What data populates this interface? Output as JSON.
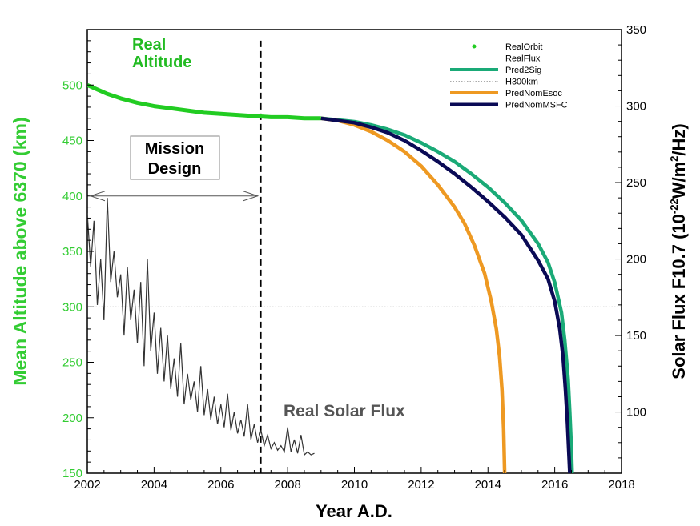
{
  "chart_data": {
    "type": "line",
    "xlabel": "Year A.D.",
    "ylabel_left": "Mean Altitude above 6370 (km)",
    "ylabel_right_parts": [
      "Solar Flux F10.7 (10",
      "-22",
      "W/m",
      "2",
      "/Hz)"
    ],
    "xlim": [
      2002,
      2018
    ],
    "ylim_left": [
      150,
      550
    ],
    "ylim_right": [
      60,
      350
    ],
    "x_ticks": [
      2002,
      2004,
      2006,
      2008,
      2010,
      2012,
      2014,
      2016,
      2018
    ],
    "y_ticks_left": [
      150,
      200,
      250,
      300,
      350,
      400,
      450,
      500
    ],
    "y_ticks_right": [
      100,
      150,
      200,
      250,
      300,
      350
    ],
    "annotations": {
      "real_altitude": [
        "Real",
        "Altitude"
      ],
      "mission_design": [
        "Mission",
        "Design"
      ],
      "real_solar_flux": "Real Solar Flux"
    },
    "mission_design_end_year": 2007.2,
    "legend": [
      {
        "label": "RealOrbit",
        "color": "#22cc22",
        "style": "dot"
      },
      {
        "label": "RealFlux",
        "color": "#000000",
        "style": "thin"
      },
      {
        "label": "Pred2Sig",
        "color": "#1aaa77",
        "style": "thick"
      },
      {
        "label": "H300km",
        "color": "#aaaaaa",
        "style": "dotted"
      },
      {
        "label": "PredNomEsoc",
        "color": "#ee9922",
        "style": "thick"
      },
      {
        "label": "PredNomMSFC",
        "color": "#0a0a55",
        "style": "thick"
      }
    ],
    "h300km": 300,
    "series": [
      {
        "name": "RealOrbit",
        "color": "#22cc22",
        "x": [
          2002.0,
          2002.3,
          2002.6,
          2003.0,
          2003.5,
          2004.0,
          2004.5,
          2005.0,
          2005.5,
          2006.0,
          2006.5,
          2007.0,
          2007.5,
          2008.0,
          2008.5,
          2009.0
        ],
        "y": [
          500,
          496,
          492,
          488,
          484,
          481,
          479,
          477,
          475,
          474,
          473,
          472,
          471,
          471,
          470,
          470
        ]
      },
      {
        "name": "Pred2Sig",
        "color": "#1aaa77",
        "x": [
          2009.0,
          2010.0,
          2010.5,
          2011.0,
          2011.5,
          2012.0,
          2012.5,
          2013.0,
          2013.5,
          2014.0,
          2014.5,
          2015.0,
          2015.5,
          2015.8,
          2016.0,
          2016.2,
          2016.3,
          2016.4,
          2016.45,
          2016.5,
          2016.52
        ],
        "y": [
          470,
          467,
          464,
          460,
          455,
          448,
          440,
          431,
          420,
          408,
          394,
          378,
          357,
          340,
          322,
          295,
          270,
          235,
          205,
          170,
          150
        ]
      },
      {
        "name": "PredNomEsoc",
        "color": "#ee9922",
        "x": [
          2009.0,
          2009.5,
          2010.0,
          2010.5,
          2011.0,
          2011.5,
          2012.0,
          2012.5,
          2013.0,
          2013.3,
          2013.6,
          2013.9,
          2014.1,
          2014.25,
          2014.35,
          2014.42,
          2014.47,
          2014.5
        ],
        "y": [
          470,
          468,
          464,
          458,
          450,
          440,
          427,
          410,
          390,
          375,
          355,
          330,
          305,
          280,
          255,
          225,
          190,
          150
        ]
      },
      {
        "name": "PredNomMSFC",
        "color": "#0a0a55",
        "x": [
          2009.0,
          2010.0,
          2010.5,
          2011.0,
          2011.5,
          2012.0,
          2012.5,
          2013.0,
          2013.5,
          2014.0,
          2014.5,
          2015.0,
          2015.5,
          2015.8,
          2016.0,
          2016.15,
          2016.25,
          2016.32,
          2016.38,
          2016.42,
          2016.45
        ],
        "y": [
          470,
          466,
          462,
          457,
          450,
          441,
          431,
          420,
          408,
          395,
          381,
          365,
          342,
          325,
          305,
          280,
          255,
          225,
          195,
          170,
          150
        ]
      },
      {
        "name": "RealFlux",
        "color": "#333333",
        "x": [
          2002.0,
          2002.1,
          2002.2,
          2002.3,
          2002.4,
          2002.5,
          2002.6,
          2002.7,
          2002.8,
          2002.9,
          2003.0,
          2003.1,
          2003.2,
          2003.3,
          2003.4,
          2003.5,
          2003.6,
          2003.7,
          2003.8,
          2003.9,
          2004.0,
          2004.1,
          2004.2,
          2004.3,
          2004.4,
          2004.5,
          2004.6,
          2004.7,
          2004.8,
          2004.9,
          2005.0,
          2005.1,
          2005.2,
          2005.3,
          2005.4,
          2005.5,
          2005.6,
          2005.7,
          2005.8,
          2005.9,
          2006.0,
          2006.1,
          2006.2,
          2006.3,
          2006.4,
          2006.5,
          2006.6,
          2006.7,
          2006.8,
          2006.9,
          2007.0,
          2007.1,
          2007.2,
          2007.3,
          2007.4,
          2007.5,
          2007.6,
          2007.7,
          2007.8,
          2007.9,
          2008.0,
          2008.1,
          2008.2,
          2008.3,
          2008.4,
          2008.5,
          2008.6,
          2008.7,
          2008.8
        ],
        "y": [
          230,
          195,
          225,
          170,
          200,
          160,
          240,
          185,
          205,
          175,
          190,
          150,
          195,
          160,
          180,
          145,
          185,
          130,
          200,
          140,
          165,
          125,
          155,
          120,
          150,
          115,
          135,
          110,
          145,
          105,
          125,
          108,
          120,
          100,
          130,
          98,
          115,
          95,
          110,
          92,
          105,
          90,
          112,
          88,
          100,
          86,
          95,
          84,
          105,
          82,
          92,
          80,
          88,
          78,
          85,
          76,
          80,
          75,
          78,
          74,
          90,
          74,
          82,
          73,
          85,
          72,
          74,
          72,
          73
        ]
      }
    ]
  }
}
